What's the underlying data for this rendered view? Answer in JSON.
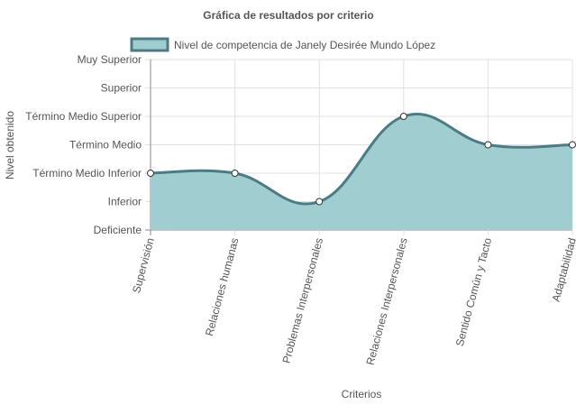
{
  "chart_data": {
    "type": "area",
    "title": "Gráfica de resultados por criterio",
    "xlabel": "Criterios",
    "ylabel": "Nivel obtenido",
    "categories": [
      "Supervisión",
      "Relaciones humanas",
      "Problemas Interpersonales",
      "Relaciones Interpersonales",
      "Sentido Común y Tacto",
      "Adaptabilidad"
    ],
    "y_levels": [
      "Deficiente",
      "Inferior",
      "Término Medio Inferior",
      "Término Medio",
      "Término Medio Superior",
      "Superior",
      "Muy Superior"
    ],
    "ylim": [
      0,
      6
    ],
    "series": [
      {
        "name": "Nivel de competencia de Janely Desirée Mundo López",
        "values": [
          2,
          2,
          1,
          4,
          3,
          3
        ]
      }
    ],
    "legend_position": "top",
    "grid": true,
    "colors": {
      "fill": "#a0cdd0",
      "line": "#4d7a83",
      "grid": "#e1e1e1",
      "axis": "#888888",
      "text": "#555555"
    }
  }
}
